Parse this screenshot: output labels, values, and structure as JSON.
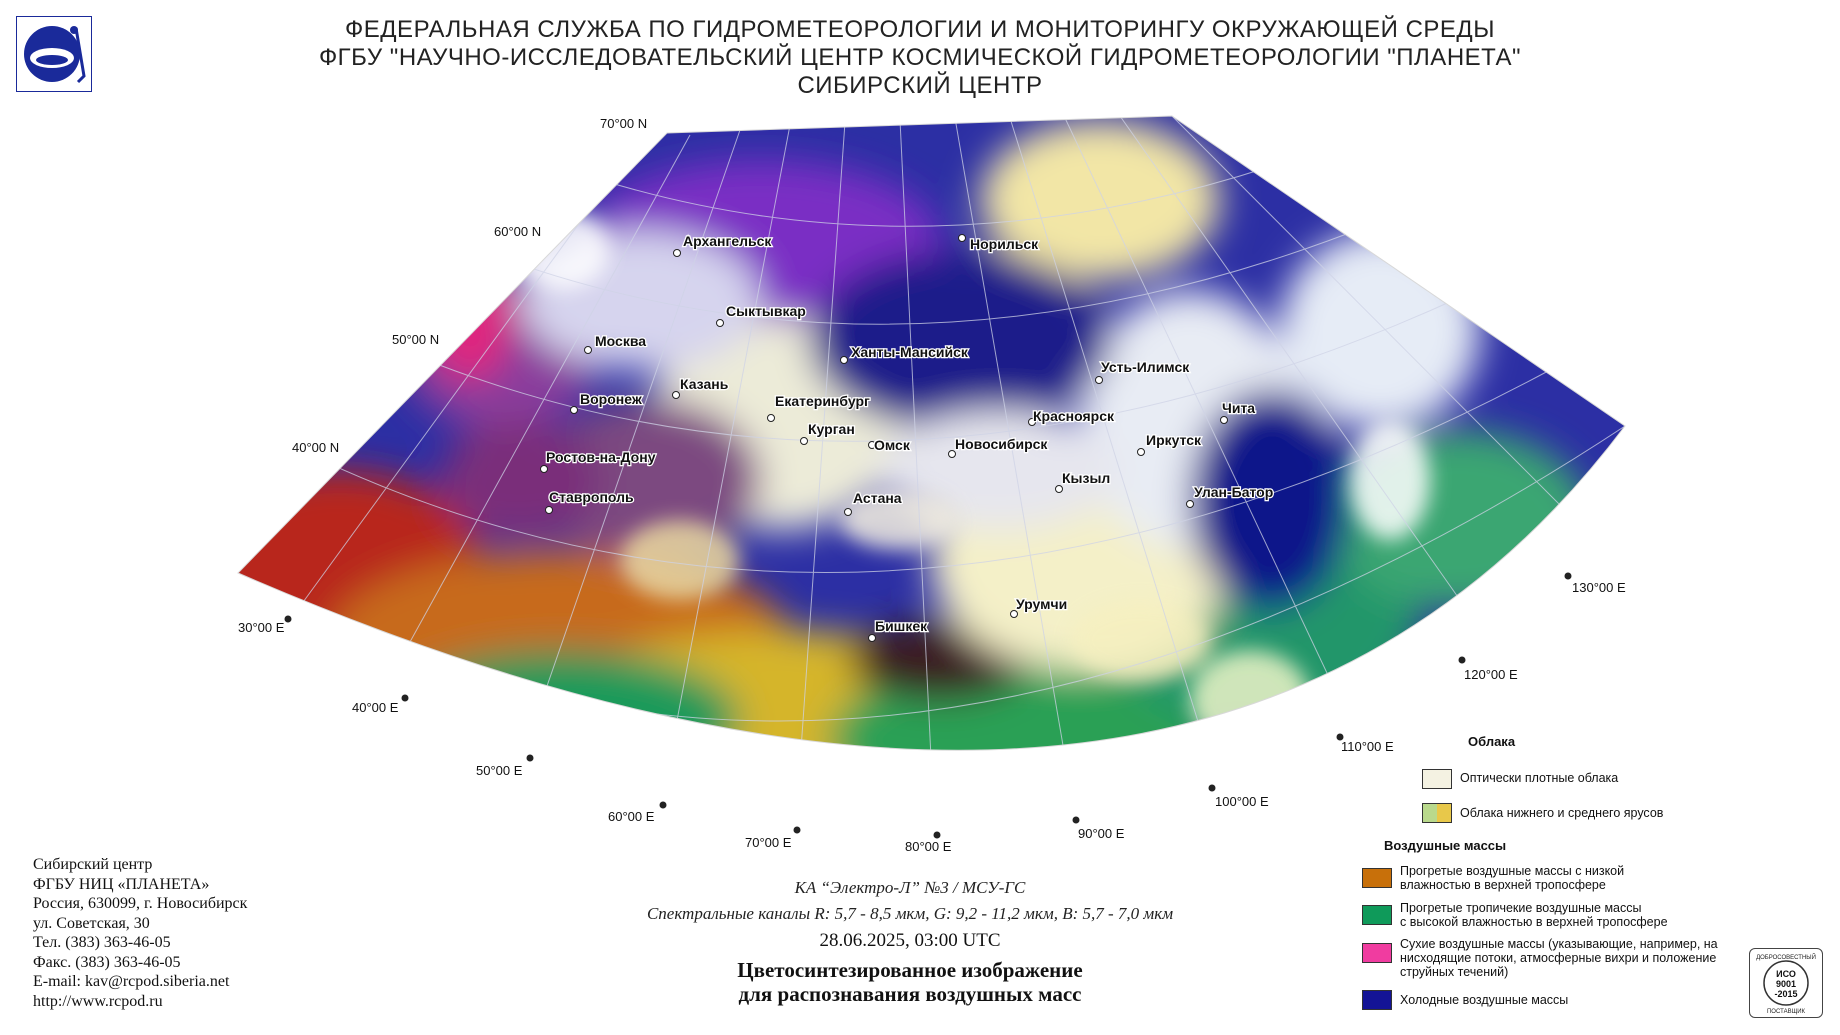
{
  "header": {
    "line1": "ФЕДЕРАЛЬНАЯ СЛУЖБА ПО ГИДРОМЕТЕОРОЛОГИИ И МОНИТОРИНГУ ОКРУЖАЮЩЕЙ СРЕДЫ",
    "line2": "ФГБУ \"НАУЧНО-ИССЛЕДОВАТЕЛЬСКИЙ ЦЕНТР КОСМИЧЕСКОЙ ГИДРОМЕТЕОРОЛОГИИ \"ПЛАНЕТА\"",
    "line3": "СИБИРСКИЙ ЦЕНТР"
  },
  "map": {
    "lat_labels": [
      "70°00 N",
      "60°00 N",
      "50°00 N",
      "40°00 N"
    ],
    "lon_labels": [
      "30°00 E",
      "40°00 E",
      "50°00 E",
      "60°00 E",
      "70°00 E",
      "80°00 E",
      "90°00 E",
      "100°00 E",
      "110°00 E",
      "120°00 E",
      "130°00 E"
    ],
    "cities": [
      {
        "name": "Архангельск"
      },
      {
        "name": "Норильск"
      },
      {
        "name": "Сыктывкар"
      },
      {
        "name": "Москва"
      },
      {
        "name": "Ханты-Мансийск"
      },
      {
        "name": "Усть-Илимск"
      },
      {
        "name": "Казань"
      },
      {
        "name": "Воронеж"
      },
      {
        "name": "Екатеринбург"
      },
      {
        "name": "Красноярск"
      },
      {
        "name": "Чита"
      },
      {
        "name": "Курган"
      },
      {
        "name": "Омск"
      },
      {
        "name": "Новосибирск"
      },
      {
        "name": "Иркутск"
      },
      {
        "name": "Ростов-на-Дону"
      },
      {
        "name": "Кызыл"
      },
      {
        "name": "Улан-Батор"
      },
      {
        "name": "Ставрополь"
      },
      {
        "name": "Астана"
      },
      {
        "name": "Урумчи"
      },
      {
        "name": "Бишкек"
      }
    ]
  },
  "contact": {
    "line1": "Сибирский центр",
    "line2": "ФГБУ НИЦ «ПЛАНЕТА»",
    "line3": "Россия, 630099, г. Новосибирск",
    "line4": "ул. Советская, 30",
    "line5": "Тел. (383) 363-46-05",
    "line6": "Факс. (383) 363-46-05",
    "line7": "E-mail: kav@rcpod.siberia.net",
    "line8": "http://www.rcpod.ru"
  },
  "caption": {
    "satellite": "КА “Электро-Л” №3 / МСУ-ГС",
    "channels": "Спектральные каналы R: 5,7 - 8,5 мкм, G: 9,2 - 11,2 мкм, B: 5,7 - 7,0 мкм",
    "datetime": "28.06.2025, 03:00 UTC",
    "title1": "Цветосинтезированное изображение",
    "title2": "для распознавания воздушных масс"
  },
  "legend": {
    "clouds_heading": "Облака",
    "clouds": [
      {
        "label": "Оптически плотные облака",
        "color": "#f4f2e2"
      },
      {
        "label": "Облака нижнего и среднего ярусов",
        "color": "#b9d98c",
        "color2": "#e8c84a"
      }
    ],
    "air_heading": "Воздушные массы",
    "air": [
      {
        "label1": "Прогретые воздушные массы с низкой",
        "label2": "влажностью в верхней тропосфере",
        "label3": "",
        "color": "#c8700a"
      },
      {
        "label1": "Прогретые тропичекие воздушные массы",
        "label2": "с высокой влажностью в верхней тропосфере",
        "label3": "",
        "color": "#0f9a5a"
      },
      {
        "label1": "Сухие воздушные массы (указывающие, например, на",
        "label2": "нисходящие потоки, атмосферные вихри и положение",
        "label3": "струйных течений)",
        "color": "#f03ca0"
      },
      {
        "label1": "Холодные воздушные массы",
        "label2": "",
        "label3": "",
        "color": "#141496"
      }
    ]
  },
  "iso_badge": {
    "top": "ДОБРОСОВЕСТНЫЙ",
    "l1": "ИСО",
    "l2": "9001",
    "l3": "-2015",
    "bottom": "ПОСТАВЩИК"
  }
}
